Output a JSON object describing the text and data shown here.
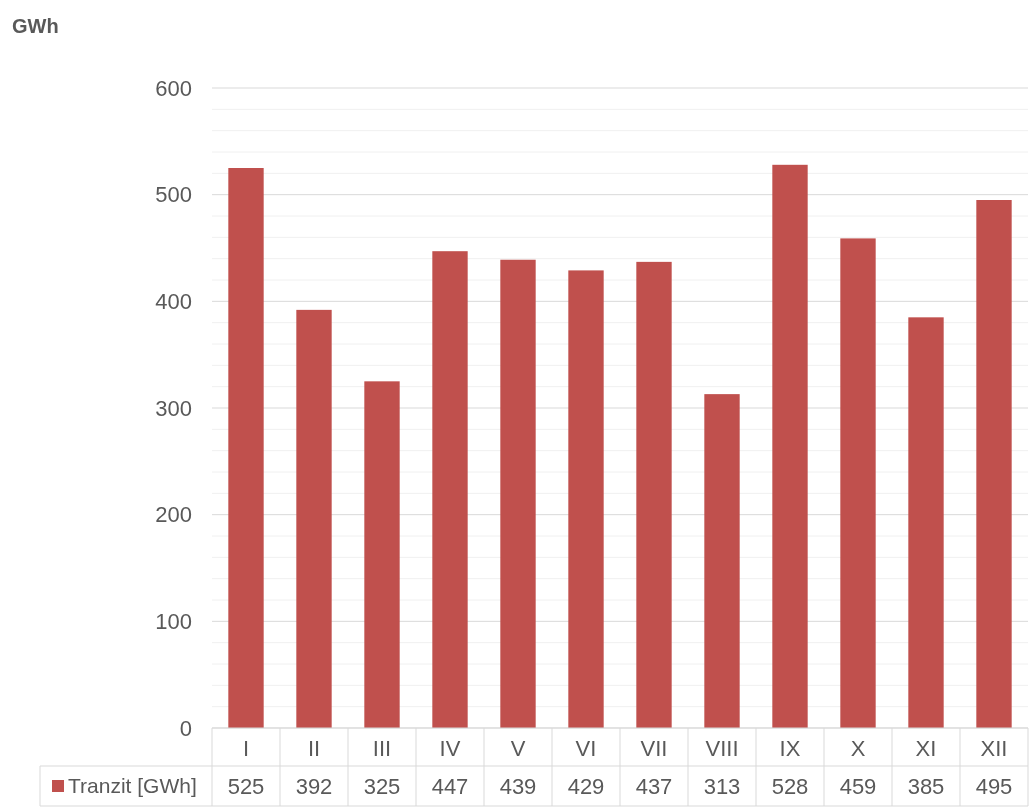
{
  "chart_data": {
    "type": "bar",
    "annotations": [
      "GWh"
    ],
    "categories": [
      "I",
      "II",
      "III",
      "IV",
      "V",
      "VI",
      "VII",
      "VIII",
      "IX",
      "X",
      "XI",
      "XII"
    ],
    "series": [
      {
        "name": "Tranzit [GWh]",
        "color": "#c0504d",
        "values": [
          525,
          392,
          325,
          447,
          439,
          429,
          437,
          313,
          528,
          459,
          385,
          495
        ]
      }
    ],
    "ylim": [
      0,
      600
    ],
    "yticks": [
      0,
      {
        "value": 20,
        "label": null
      },
      {
        "value": 40,
        "label": null
      },
      {
        "value": 60,
        "label": null
      },
      {
        "value": 80,
        "label": null
      },
      100,
      {
        "value": 120,
        "label": null
      },
      {
        "value": 140,
        "label": null
      },
      {
        "value": 160,
        "label": null
      },
      {
        "value": 180,
        "label": null
      },
      200,
      {
        "value": 220,
        "label": null
      },
      {
        "value": 240,
        "label": null
      },
      {
        "value": 260,
        "label": null
      },
      {
        "value": 280,
        "label": null
      },
      300,
      {
        "value": 320,
        "label": null
      },
      {
        "value": 340,
        "label": null
      },
      {
        "value": 360,
        "label": null
      },
      {
        "value": 380,
        "label": null
      },
      400,
      {
        "value": 420,
        "label": null
      },
      {
        "value": 440,
        "label": null
      },
      {
        "value": 460,
        "label": null
      },
      {
        "value": 480,
        "label": null
      },
      500,
      {
        "value": 520,
        "label": null
      },
      {
        "value": 540,
        "label": null
      },
      {
        "value": 560,
        "label": null
      },
      {
        "value": 580,
        "label": null
      },
      600
    ],
    "grid": "y",
    "data_labels": true,
    "legend": "bottom"
  }
}
